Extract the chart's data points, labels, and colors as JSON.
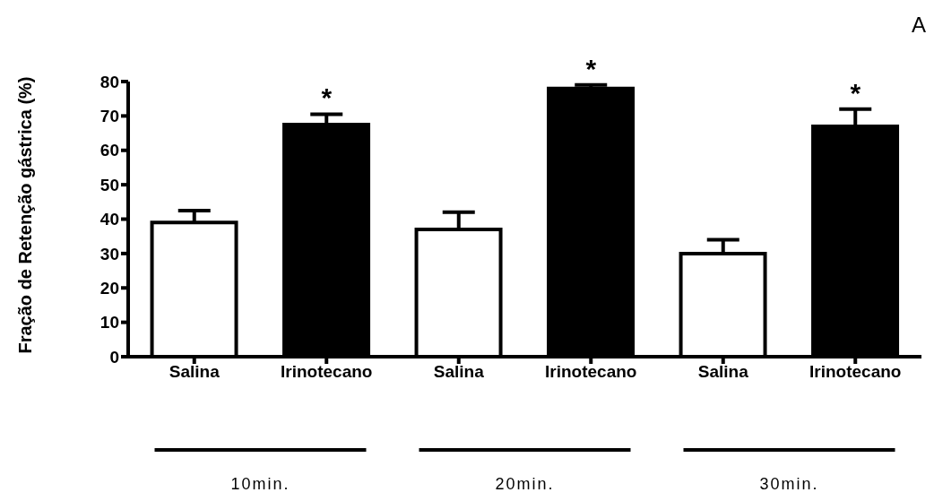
{
  "chart_data": {
    "type": "bar",
    "ylabel": "Fração de Retenção gástrica (%)",
    "categories": [
      "Salina",
      "Irinotecano",
      "Salina",
      "Irinotecano",
      "Salina",
      "Irinotecano"
    ],
    "values": [
      39,
      67.5,
      37,
      78,
      30,
      67
    ],
    "errors": [
      [
        39,
        42.5
      ],
      [
        67.5,
        70.5
      ],
      [
        37,
        42
      ],
      [
        78,
        79
      ],
      [
        30,
        34
      ],
      [
        67,
        72
      ]
    ],
    "colors": [
      "#ffffff",
      "#000000",
      "#ffffff",
      "#000000",
      "#ffffff",
      "#000000"
    ],
    "ylim": [
      0,
      80
    ],
    "yticks": [
      0,
      10,
      20,
      30,
      40,
      50,
      60,
      70,
      80
    ],
    "grid": false,
    "legend": false,
    "annotations": [
      "A",
      "10min.",
      "20min.",
      "30min.",
      "*",
      "*",
      "*"
    ]
  }
}
